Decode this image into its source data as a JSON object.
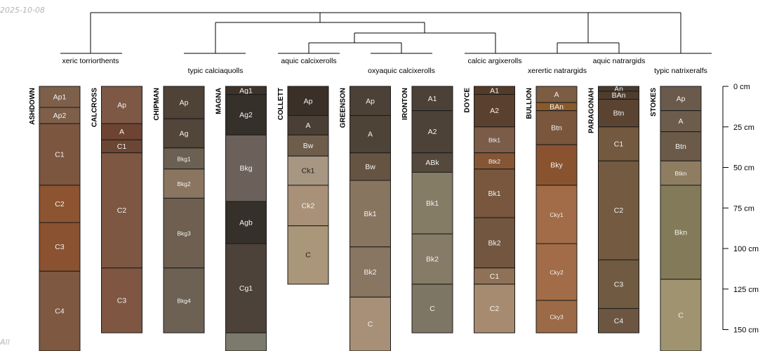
{
  "date_stamp": "2025-10-08",
  "corner_stamp": "All",
  "depth_axis": {
    "unit": "cm",
    "ticks": [
      {
        "value": 0,
        "label": "0 cm"
      },
      {
        "value": 25,
        "label": "25 cm"
      },
      {
        "value": 50,
        "label": "50 cm"
      },
      {
        "value": 75,
        "label": "75 cm"
      },
      {
        "value": 100,
        "label": "100 cm"
      },
      {
        "value": 125,
        "label": "125 cm"
      },
      {
        "value": 150,
        "label": "150 cm"
      }
    ]
  },
  "groups": [
    {
      "label": "xeric torriorthents",
      "members": [
        0
      ]
    },
    {
      "label": "typic calciaquolls",
      "members": [
        2,
        3
      ]
    },
    {
      "label": "aquic calcixerolls",
      "members": [
        4
      ]
    },
    {
      "label": "oxyaquic calcixerolls",
      "members": [
        5,
        6
      ]
    },
    {
      "label": "calcic argixerolls",
      "members": [
        7
      ]
    },
    {
      "label": "xerertic natrargids",
      "members": [
        8
      ]
    },
    {
      "label": "aquic natrargids",
      "members": [
        9
      ]
    },
    {
      "label": "typic natrixeralfs",
      "members": [
        10
      ]
    }
  ],
  "profiles": [
    {
      "name": "ASHDOWN",
      "horizons": [
        {
          "name": "Ap1",
          "top": 0,
          "bottom": 13,
          "color": "#7d5f4a"
        },
        {
          "name": "Ap2",
          "top": 13,
          "bottom": 23,
          "color": "#7d5f4a"
        },
        {
          "name": "C1",
          "top": 23,
          "bottom": 61,
          "color": "#7d563f"
        },
        {
          "name": "C2",
          "top": 61,
          "bottom": 84,
          "color": "#8c5430"
        },
        {
          "name": "C3",
          "top": 84,
          "bottom": 114,
          "color": "#8a5230"
        },
        {
          "name": "C4",
          "top": 114,
          "bottom": 170,
          "color": "#7e5840"
        }
      ]
    },
    {
      "name": "CALCROSS",
      "horizons": [
        {
          "name": "Ap",
          "top": 0,
          "bottom": 23,
          "color": "#7d5845"
        },
        {
          "name": "A",
          "top": 23,
          "bottom": 33,
          "color": "#6d4431"
        },
        {
          "name": "C1",
          "top": 33,
          "bottom": 41,
          "color": "#6c4634"
        },
        {
          "name": "C2",
          "top": 41,
          "bottom": 112,
          "color": "#7d5742"
        },
        {
          "name": "C3",
          "top": 112,
          "bottom": 152,
          "color": "#7e5641"
        }
      ]
    },
    {
      "name": "CHIPMAN",
      "horizons": [
        {
          "name": "Ap",
          "top": 0,
          "bottom": 20,
          "color": "#4f4236"
        },
        {
          "name": "Ag",
          "top": 20,
          "bottom": 38,
          "color": "#524539"
        },
        {
          "name": "Bkg1",
          "top": 38,
          "bottom": 51,
          "color": "#6c6052"
        },
        {
          "name": "Bkg2",
          "top": 51,
          "bottom": 69,
          "color": "#8a7560"
        },
        {
          "name": "Bkg3",
          "top": 69,
          "bottom": 112,
          "color": "#6e5f50"
        },
        {
          "name": "Bkg4",
          "top": 112,
          "bottom": 152,
          "color": "#6c6153"
        }
      ]
    },
    {
      "name": "MAGNA",
      "horizons": [
        {
          "name": "Ag1",
          "top": 0,
          "bottom": 5,
          "color": "#3e332b"
        },
        {
          "name": "Ag2",
          "top": 5,
          "bottom": 30,
          "color": "#36302a"
        },
        {
          "name": "Bkg",
          "top": 30,
          "bottom": 71,
          "color": "#6c615a"
        },
        {
          "name": "Agb",
          "top": 71,
          "bottom": 97,
          "color": "#36302a"
        },
        {
          "name": "Cg1",
          "top": 97,
          "bottom": 152,
          "color": "#4c4239"
        },
        {
          "name": "",
          "top": 152,
          "bottom": 170,
          "color": "#7c7a6c"
        }
      ]
    },
    {
      "name": "COLLETT",
      "horizons": [
        {
          "name": "Ap",
          "top": 0,
          "bottom": 18,
          "color": "#3a3028"
        },
        {
          "name": "A",
          "top": 18,
          "bottom": 30,
          "color": "#4b3f35"
        },
        {
          "name": "Bw",
          "top": 30,
          "bottom": 43,
          "color": "#6e5d4b"
        },
        {
          "name": "Ck1",
          "top": 43,
          "bottom": 61,
          "color": "#a69682"
        },
        {
          "name": "Ck2",
          "top": 61,
          "bottom": 86,
          "color": "#a89178"
        },
        {
          "name": "C",
          "top": 86,
          "bottom": 122,
          "color": "#aa9678"
        }
      ]
    },
    {
      "name": "GREENSON",
      "horizons": [
        {
          "name": "Ap",
          "top": 0,
          "bottom": 18,
          "color": "#4c4137"
        },
        {
          "name": "A",
          "top": 18,
          "bottom": 41,
          "color": "#4e4337"
        },
        {
          "name": "Bw",
          "top": 41,
          "bottom": 58,
          "color": "#665443"
        },
        {
          "name": "Bk1",
          "top": 58,
          "bottom": 99,
          "color": "#887560"
        },
        {
          "name": "Bk2",
          "top": 99,
          "bottom": 130,
          "color": "#887562"
        },
        {
          "name": "C",
          "top": 130,
          "bottom": 170,
          "color": "#a89078"
        }
      ]
    },
    {
      "name": "IRONTON",
      "horizons": [
        {
          "name": "A1",
          "top": 0,
          "bottom": 15,
          "color": "#4b4137"
        },
        {
          "name": "A2",
          "top": 15,
          "bottom": 41,
          "color": "#4c4237"
        },
        {
          "name": "ABk",
          "top": 41,
          "bottom": 53,
          "color": "#55493d"
        },
        {
          "name": "Bk1",
          "top": 53,
          "bottom": 91,
          "color": "#857c66"
        },
        {
          "name": "Bk2",
          "top": 91,
          "bottom": 122,
          "color": "#857b66"
        },
        {
          "name": "C",
          "top": 122,
          "bottom": 152,
          "color": "#7e7664"
        }
      ]
    },
    {
      "name": "DOYCE",
      "horizons": [
        {
          "name": "A1",
          "top": 0,
          "bottom": 5,
          "color": "#563a28"
        },
        {
          "name": "A2",
          "top": 5,
          "bottom": 25,
          "color": "#5a412f"
        },
        {
          "name": "Btk1",
          "top": 25,
          "bottom": 41,
          "color": "#7b5c48"
        },
        {
          "name": "Btk2",
          "top": 41,
          "bottom": 51,
          "color": "#855635"
        },
        {
          "name": "Bk1",
          "top": 51,
          "bottom": 81,
          "color": "#78573e"
        },
        {
          "name": "Bk2",
          "top": 81,
          "bottom": 112,
          "color": "#725640"
        },
        {
          "name": "C1",
          "top": 112,
          "bottom": 122,
          "color": "#8f7157"
        },
        {
          "name": "C2",
          "top": 122,
          "bottom": 152,
          "color": "#a68b70"
        }
      ]
    },
    {
      "name": "BULLION",
      "horizons": [
        {
          "name": "A",
          "top": 0,
          "bottom": 10,
          "color": "#7d5c44"
        },
        {
          "name": "BAn",
          "top": 10,
          "bottom": 15,
          "color": "#8b5a2b"
        },
        {
          "name": "Btn",
          "top": 15,
          "bottom": 36,
          "color": "#7a563c"
        },
        {
          "name": "Bky",
          "top": 36,
          "bottom": 61,
          "color": "#8a5330"
        },
        {
          "name": "Cky1",
          "top": 61,
          "bottom": 97,
          "color": "#a16c47"
        },
        {
          "name": "Cky2",
          "top": 97,
          "bottom": 132,
          "color": "#a16c47"
        },
        {
          "name": "Cky3",
          "top": 132,
          "bottom": 152,
          "color": "#9c6a46"
        }
      ]
    },
    {
      "name": "PARAGONAH",
      "horizons": [
        {
          "name": "An",
          "top": 0,
          "bottom": 3,
          "color": "#4a3a2c"
        },
        {
          "name": "BAn",
          "top": 3,
          "bottom": 8,
          "color": "#4e3d2e"
        },
        {
          "name": "Btn",
          "top": 8,
          "bottom": 25,
          "color": "#5a4330"
        },
        {
          "name": "C1",
          "top": 25,
          "bottom": 46,
          "color": "#73593f"
        },
        {
          "name": "C2",
          "top": 46,
          "bottom": 107,
          "color": "#735a40"
        },
        {
          "name": "C3",
          "top": 107,
          "bottom": 137,
          "color": "#715a42"
        },
        {
          "name": "C4",
          "top": 137,
          "bottom": 152,
          "color": "#6c5642"
        }
      ]
    },
    {
      "name": "STOKES",
      "horizons": [
        {
          "name": "Ap",
          "top": 0,
          "bottom": 15,
          "color": "#6a5a4b"
        },
        {
          "name": "A",
          "top": 15,
          "bottom": 28,
          "color": "#6c5c4c"
        },
        {
          "name": "Btn",
          "top": 28,
          "bottom": 46,
          "color": "#6c5a49"
        },
        {
          "name": "Btkn",
          "top": 46,
          "bottom": 61,
          "color": "#8f7d62"
        },
        {
          "name": "Bkn",
          "top": 61,
          "bottom": 119,
          "color": "#837a5a"
        },
        {
          "name": "C",
          "top": 119,
          "bottom": 170,
          "color": "#a09470"
        }
      ]
    }
  ]
}
